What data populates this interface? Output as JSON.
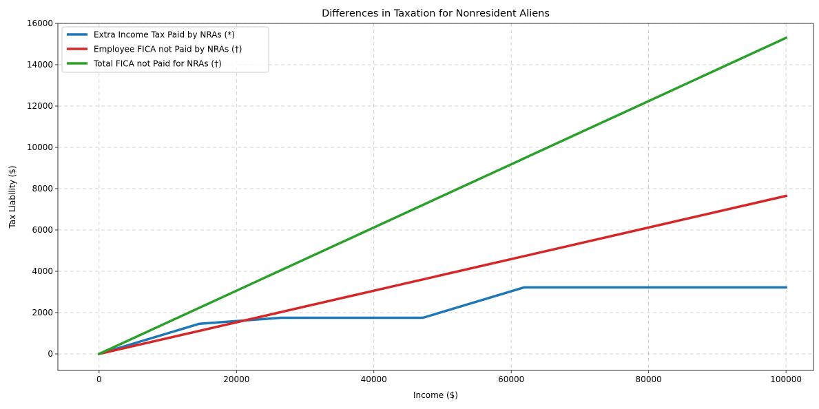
{
  "chart_data": {
    "type": "line",
    "title": "Differences in Taxation for Nonresident Aliens",
    "xlabel": "Income ($)",
    "ylabel": "Tax Liability ($)",
    "xlim": [
      -6000,
      104000
    ],
    "ylim": [
      -800,
      16000
    ],
    "xticks": [
      0,
      20000,
      40000,
      60000,
      80000,
      100000
    ],
    "yticks": [
      0,
      2000,
      4000,
      6000,
      8000,
      10000,
      12000,
      14000,
      16000
    ],
    "grid": true,
    "legend_position": "upper-left",
    "series": [
      {
        "name": "Extra Income Tax Paid by NRAs (*)",
        "color": "#1f77b4",
        "x": [
          0,
          14600,
          26475,
          47150,
          61850,
          100000
        ],
        "y": [
          0,
          1460,
          1750,
          1750,
          3220,
          3220
        ]
      },
      {
        "name": "Employee FICA not Paid by NRAs (†)",
        "color": "#d62728",
        "x": [
          0,
          100000
        ],
        "y": [
          0,
          7650
        ]
      },
      {
        "name": "Total FICA not Paid for NRAs (†)",
        "color": "#2ca02c",
        "x": [
          0,
          100000
        ],
        "y": [
          0,
          15300
        ]
      }
    ]
  }
}
